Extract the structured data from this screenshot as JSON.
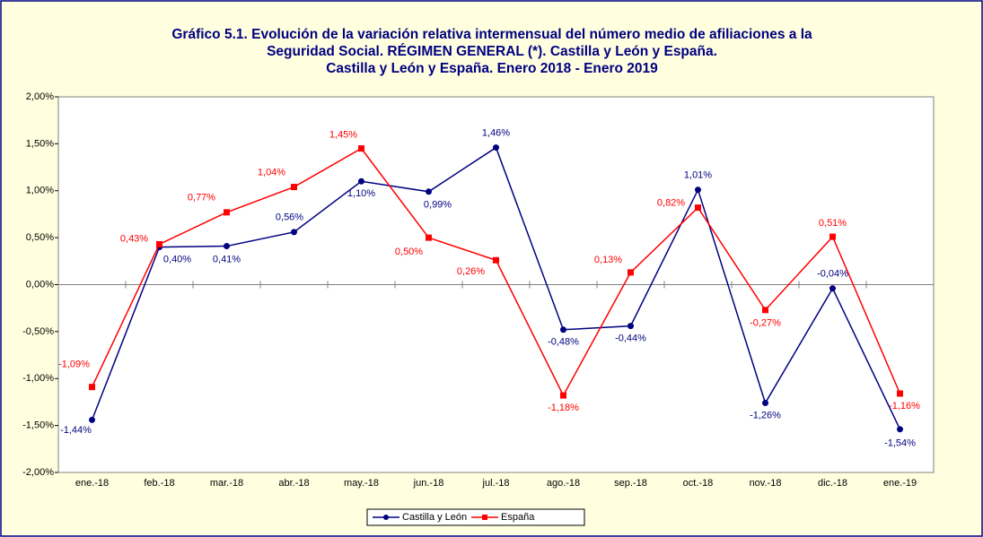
{
  "chart_data": {
    "type": "line",
    "title": [
      "Gráfico 5.1. Evolución de la variación relativa intermensual del número medio de afiliaciones a la",
      "Seguridad Social. RÉGIMEN GENERAL (*). Castilla y León y España.",
      "Castilla y León y España. Enero 2018 - Enero 2019"
    ],
    "categories": [
      "ene.-18",
      "feb.-18",
      "mar.-18",
      "abr.-18",
      "may.-18",
      "jun.-18",
      "jul.-18",
      "ago.-18",
      "sep.-18",
      "oct.-18",
      "nov.-18",
      "dic.-18",
      "ene.-19"
    ],
    "series": [
      {
        "name": "Castilla y León",
        "color": "#000080",
        "values": [
          -1.44,
          0.4,
          0.41,
          0.56,
          1.1,
          0.99,
          1.46,
          -0.48,
          -0.44,
          1.01,
          -1.26,
          -0.04,
          -1.54
        ],
        "value_labels": [
          "-1,44%",
          "0,40%",
          "0,41%",
          "0,56%",
          "1,10%",
          "0,99%",
          "1,46%",
          "-0,48%",
          "-0,44%",
          "1,01%",
          "-1,26%",
          "-0,04%",
          "-1,54%"
        ]
      },
      {
        "name": "España",
        "color": "#ff0000",
        "values": [
          -1.09,
          0.43,
          0.77,
          1.04,
          1.45,
          0.5,
          0.26,
          -1.18,
          0.13,
          0.82,
          -0.27,
          0.51,
          -1.16
        ],
        "value_labels": [
          "-1,09%",
          "0,43%",
          "0,77%",
          "1,04%",
          "1,45%",
          "0,50%",
          "0,26%",
          "-1,18%",
          "0,13%",
          "0,82%",
          "-0,27%",
          "0,51%",
          "-1,16%"
        ]
      }
    ],
    "ylim": [
      -2,
      2
    ],
    "yticks": [
      {
        "value": -2,
        "label": "-2,00%"
      },
      {
        "value": -1.5,
        "label": "-1,50%"
      },
      {
        "value": -1,
        "label": "-1,00%"
      },
      {
        "value": -0.5,
        "label": "-0,50%"
      },
      {
        "value": 0,
        "label": "0,00%"
      },
      {
        "value": 0.5,
        "label": "0,50%"
      },
      {
        "value": 1,
        "label": "1,00%"
      },
      {
        "value": 1.5,
        "label": "1,50%"
      },
      {
        "value": 2,
        "label": "2,00%"
      }
    ],
    "grid": false,
    "legend": "bottom"
  }
}
